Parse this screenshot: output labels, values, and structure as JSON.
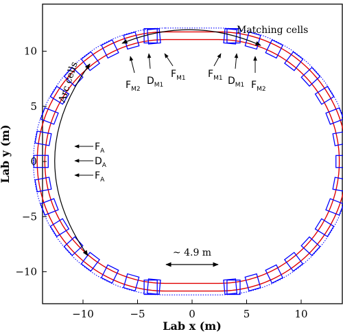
{
  "chart_data": {
    "type": "scatter",
    "title": "",
    "xlabel": "Lab x (m)",
    "ylabel": "Lab y (m)",
    "xlim": [
      -13.8,
      13.8
    ],
    "ylim": [
      -13,
      14.3
    ],
    "xticks": [
      -10,
      -5,
      0,
      5,
      10
    ],
    "yticks": [
      -10,
      -5,
      0,
      5,
      10
    ],
    "xtick_labels": [
      "−10",
      "−5",
      "0",
      "5",
      "10"
    ],
    "ytick_labels": [
      "−10",
      "−5",
      "0",
      "5",
      "10"
    ],
    "grid": false,
    "ring": {
      "straight_section_half_length_m": 2.45,
      "arc_radius_m": 11.4,
      "series": [
        {
          "color": "#e00000",
          "style": "solid",
          "role": "beam pipe outer edge",
          "offset_m": 0.35
        },
        {
          "color": "#e00000",
          "style": "solid",
          "role": "beam pipe inner edge",
          "offset_m": -0.35
        },
        {
          "color": "#0000ff",
          "style": "dotted",
          "role": "outer envelope",
          "offset_m": 0.7
        }
      ]
    },
    "annotations": {
      "matching_cells": "Matching cells",
      "arc_cells": "Arc cells",
      "straight_length": "~ 4.9 m",
      "magnets_top_left": [
        {
          "letter": "F",
          "sub": "M2"
        },
        {
          "letter": "D",
          "sub": "M1"
        },
        {
          "letter": "F",
          "sub": "M1"
        }
      ],
      "magnets_top_right": [
        {
          "letter": "F",
          "sub": "M1"
        },
        {
          "letter": "D",
          "sub": "M1"
        },
        {
          "letter": "F",
          "sub": "M2"
        }
      ],
      "magnets_left": [
        {
          "letter": "F",
          "sub": "A"
        },
        {
          "letter": "D",
          "sub": "A"
        },
        {
          "letter": "F",
          "sub": "A"
        }
      ]
    }
  }
}
